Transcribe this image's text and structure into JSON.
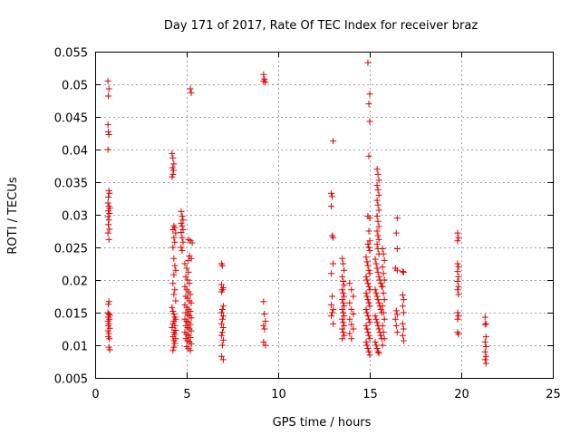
{
  "chart_data": {
    "type": "scatter",
    "title": "Day 171 of 2017, Rate Of TEC Index for receiver braz",
    "xlabel": "GPS time / hours",
    "ylabel": "ROTI / TECUs",
    "xlim": [
      0,
      25
    ],
    "ylim": [
      0.005,
      0.055
    ],
    "xticks": [
      "0",
      "5",
      "10",
      "15",
      "20",
      "25"
    ],
    "yticks": [
      "0.005",
      "0.01",
      "0.015",
      "0.02",
      "0.025",
      "0.03",
      "0.035",
      "0.04",
      "0.045",
      "0.05",
      "0.055"
    ],
    "grid": true,
    "marker": "+",
    "color": "#e00000",
    "points": [
      [
        0.7,
        0.0505
      ],
      [
        0.75,
        0.0493
      ],
      [
        0.72,
        0.0482
      ],
      [
        0.7,
        0.0438
      ],
      [
        0.72,
        0.0427
      ],
      [
        0.75,
        0.0423
      ],
      [
        0.7,
        0.04
      ],
      [
        0.75,
        0.0337
      ],
      [
        0.78,
        0.0333
      ],
      [
        0.72,
        0.0327
      ],
      [
        0.7,
        0.0318
      ],
      [
        0.75,
        0.0313
      ],
      [
        0.8,
        0.031
      ],
      [
        0.72,
        0.0306
      ],
      [
        0.78,
        0.0302
      ],
      [
        0.7,
        0.0297
      ],
      [
        0.75,
        0.0292
      ],
      [
        0.72,
        0.0285
      ],
      [
        0.78,
        0.0278
      ],
      [
        0.7,
        0.0272
      ],
      [
        0.75,
        0.0262
      ],
      [
        0.75,
        0.0167
      ],
      [
        0.72,
        0.0163
      ],
      [
        0.7,
        0.015
      ],
      [
        0.75,
        0.0148
      ],
      [
        0.8,
        0.0146
      ],
      [
        0.72,
        0.0143
      ],
      [
        0.78,
        0.014
      ],
      [
        0.7,
        0.0137
      ],
      [
        0.75,
        0.0133
      ],
      [
        0.72,
        0.013
      ],
      [
        0.8,
        0.0126
      ],
      [
        0.7,
        0.0122
      ],
      [
        0.75,
        0.0118
      ],
      [
        0.72,
        0.0113
      ],
      [
        0.78,
        0.011
      ],
      [
        0.75,
        0.0097
      ],
      [
        0.8,
        0.0093
      ],
      [
        4.2,
        0.0394
      ],
      [
        4.25,
        0.0387
      ],
      [
        4.3,
        0.0378
      ],
      [
        4.22,
        0.0372
      ],
      [
        4.28,
        0.0368
      ],
      [
        4.25,
        0.0362
      ],
      [
        4.2,
        0.0358
      ],
      [
        4.3,
        0.0283
      ],
      [
        4.35,
        0.028
      ],
      [
        4.25,
        0.0277
      ],
      [
        4.4,
        0.0272
      ],
      [
        4.3,
        0.0265
      ],
      [
        4.35,
        0.0258
      ],
      [
        4.25,
        0.025
      ],
      [
        4.3,
        0.0233
      ],
      [
        4.35,
        0.0222
      ],
      [
        4.4,
        0.0215
      ],
      [
        4.3,
        0.0208
      ],
      [
        4.25,
        0.0195
      ],
      [
        4.35,
        0.0185
      ],
      [
        4.3,
        0.0178
      ],
      [
        4.4,
        0.0168
      ],
      [
        4.2,
        0.0158
      ],
      [
        4.25,
        0.0152
      ],
      [
        4.3,
        0.0148
      ],
      [
        4.35,
        0.0143
      ],
      [
        4.4,
        0.014
      ],
      [
        4.3,
        0.0137
      ],
      [
        4.25,
        0.0133
      ],
      [
        4.35,
        0.013
      ],
      [
        4.2,
        0.0127
      ],
      [
        4.4,
        0.0123
      ],
      [
        4.3,
        0.012
      ],
      [
        4.35,
        0.0117
      ],
      [
        4.25,
        0.0113
      ],
      [
        4.4,
        0.011
      ],
      [
        4.3,
        0.0107
      ],
      [
        4.35,
        0.0103
      ],
      [
        4.3,
        0.0097
      ],
      [
        4.25,
        0.0092
      ],
      [
        4.7,
        0.0305
      ],
      [
        4.75,
        0.0298
      ],
      [
        4.8,
        0.0292
      ],
      [
        4.7,
        0.0287
      ],
      [
        4.75,
        0.0283
      ],
      [
        4.8,
        0.0277
      ],
      [
        4.7,
        0.0273
      ],
      [
        4.75,
        0.0265
      ],
      [
        4.8,
        0.0258
      ],
      [
        4.7,
        0.025
      ],
      [
        4.75,
        0.0245
      ],
      [
        5.2,
        0.0493
      ],
      [
        5.25,
        0.0487
      ],
      [
        5.1,
        0.0262
      ],
      [
        5.2,
        0.026
      ],
      [
        5.3,
        0.0257
      ],
      [
        5.15,
        0.0237
      ],
      [
        5.25,
        0.0233
      ],
      [
        5.1,
        0.023
      ],
      [
        4.9,
        0.0225
      ],
      [
        5.0,
        0.0218
      ],
      [
        5.1,
        0.0212
      ],
      [
        4.95,
        0.0205
      ],
      [
        5.05,
        0.02
      ],
      [
        5.15,
        0.0195
      ],
      [
        4.9,
        0.019
      ],
      [
        5.0,
        0.0185
      ],
      [
        5.1,
        0.0182
      ],
      [
        5.2,
        0.0178
      ],
      [
        4.95,
        0.0175
      ],
      [
        5.05,
        0.0172
      ],
      [
        5.15,
        0.0168
      ],
      [
        5.25,
        0.0165
      ],
      [
        4.9,
        0.0162
      ],
      [
        5.0,
        0.0158
      ],
      [
        5.1,
        0.0155
      ],
      [
        5.2,
        0.0152
      ],
      [
        4.95,
        0.015
      ],
      [
        5.05,
        0.0147
      ],
      [
        5.15,
        0.0145
      ],
      [
        5.25,
        0.0142
      ],
      [
        4.9,
        0.014
      ],
      [
        5.0,
        0.0137
      ],
      [
        5.1,
        0.0135
      ],
      [
        5.2,
        0.0132
      ],
      [
        4.95,
        0.013
      ],
      [
        5.05,
        0.0127
      ],
      [
        5.15,
        0.0125
      ],
      [
        5.25,
        0.0122
      ],
      [
        4.9,
        0.012
      ],
      [
        5.0,
        0.0117
      ],
      [
        5.1,
        0.0115
      ],
      [
        5.2,
        0.0112
      ],
      [
        4.95,
        0.011
      ],
      [
        5.05,
        0.0107
      ],
      [
        5.15,
        0.0105
      ],
      [
        5.25,
        0.0102
      ],
      [
        5.0,
        0.0098
      ],
      [
        5.1,
        0.0095
      ],
      [
        5.2,
        0.0092
      ],
      [
        6.9,
        0.0225
      ],
      [
        6.95,
        0.0222
      ],
      [
        6.9,
        0.0193
      ],
      [
        7.0,
        0.0188
      ],
      [
        6.95,
        0.0185
      ],
      [
        6.9,
        0.0182
      ],
      [
        7.0,
        0.016
      ],
      [
        6.95,
        0.0155
      ],
      [
        6.9,
        0.015
      ],
      [
        7.0,
        0.0145
      ],
      [
        6.95,
        0.014
      ],
      [
        6.9,
        0.0133
      ],
      [
        7.0,
        0.0127
      ],
      [
        6.95,
        0.012
      ],
      [
        6.9,
        0.0115
      ],
      [
        7.0,
        0.0108
      ],
      [
        6.95,
        0.01
      ],
      [
        6.9,
        0.0083
      ],
      [
        7.0,
        0.0078
      ],
      [
        9.2,
        0.0515
      ],
      [
        9.25,
        0.0508
      ],
      [
        9.2,
        0.0505
      ],
      [
        9.3,
        0.0503
      ],
      [
        9.2,
        0.0167
      ],
      [
        9.25,
        0.0148
      ],
      [
        9.3,
        0.0137
      ],
      [
        9.2,
        0.013
      ],
      [
        9.25,
        0.0125
      ],
      [
        9.2,
        0.0105
      ],
      [
        9.3,
        0.01
      ],
      [
        13.0,
        0.0413
      ],
      [
        12.9,
        0.0333
      ],
      [
        12.95,
        0.0328
      ],
      [
        12.9,
        0.0313
      ],
      [
        12.95,
        0.0268
      ],
      [
        13.0,
        0.0265
      ],
      [
        13.0,
        0.0225
      ],
      [
        12.9,
        0.021
      ],
      [
        12.95,
        0.0175
      ],
      [
        12.9,
        0.0162
      ],
      [
        13.0,
        0.0155
      ],
      [
        12.95,
        0.015
      ],
      [
        12.9,
        0.0145
      ],
      [
        13.0,
        0.0133
      ],
      [
        13.5,
        0.0233
      ],
      [
        13.55,
        0.0225
      ],
      [
        13.6,
        0.0215
      ],
      [
        13.5,
        0.0205
      ],
      [
        13.55,
        0.0198
      ],
      [
        13.6,
        0.0192
      ],
      [
        13.5,
        0.0185
      ],
      [
        13.55,
        0.018
      ],
      [
        13.6,
        0.0175
      ],
      [
        13.5,
        0.017
      ],
      [
        13.55,
        0.0165
      ],
      [
        13.6,
        0.016
      ],
      [
        13.5,
        0.0155
      ],
      [
        13.55,
        0.015
      ],
      [
        13.6,
        0.0145
      ],
      [
        13.5,
        0.014
      ],
      [
        13.55,
        0.0135
      ],
      [
        13.6,
        0.013
      ],
      [
        13.5,
        0.0125
      ],
      [
        13.55,
        0.012
      ],
      [
        13.6,
        0.0115
      ],
      [
        13.5,
        0.011
      ],
      [
        13.9,
        0.0195
      ],
      [
        14.0,
        0.0185
      ],
      [
        14.1,
        0.0175
      ],
      [
        13.9,
        0.0165
      ],
      [
        14.0,
        0.0155
      ],
      [
        14.1,
        0.0148
      ],
      [
        13.9,
        0.014
      ],
      [
        14.0,
        0.0132
      ],
      [
        14.1,
        0.0125
      ],
      [
        13.9,
        0.0118
      ],
      [
        14.0,
        0.011
      ],
      [
        14.9,
        0.0533
      ],
      [
        15.0,
        0.0485
      ],
      [
        14.95,
        0.047
      ],
      [
        15.0,
        0.0443
      ],
      [
        14.95,
        0.039
      ],
      [
        14.9,
        0.0298
      ],
      [
        15.0,
        0.0295
      ],
      [
        14.95,
        0.0275
      ],
      [
        15.0,
        0.026
      ],
      [
        14.9,
        0.0255
      ],
      [
        14.95,
        0.025
      ],
      [
        15.0,
        0.0245
      ],
      [
        14.8,
        0.0235
      ],
      [
        14.85,
        0.0228
      ],
      [
        14.9,
        0.0222
      ],
      [
        14.95,
        0.0215
      ],
      [
        15.0,
        0.021
      ],
      [
        14.8,
        0.0205
      ],
      [
        14.85,
        0.02
      ],
      [
        14.9,
        0.0195
      ],
      [
        14.95,
        0.019
      ],
      [
        15.0,
        0.0185
      ],
      [
        14.8,
        0.018
      ],
      [
        14.85,
        0.0175
      ],
      [
        14.9,
        0.017
      ],
      [
        14.95,
        0.0165
      ],
      [
        15.0,
        0.016
      ],
      [
        14.8,
        0.0155
      ],
      [
        14.85,
        0.015
      ],
      [
        14.9,
        0.0145
      ],
      [
        14.95,
        0.014
      ],
      [
        15.0,
        0.0135
      ],
      [
        14.8,
        0.013
      ],
      [
        14.85,
        0.0125
      ],
      [
        14.9,
        0.012
      ],
      [
        14.95,
        0.0115
      ],
      [
        15.0,
        0.011
      ],
      [
        14.8,
        0.0105
      ],
      [
        14.85,
        0.01
      ],
      [
        14.9,
        0.0095
      ],
      [
        14.95,
        0.009
      ],
      [
        15.0,
        0.0085
      ],
      [
        15.4,
        0.037
      ],
      [
        15.45,
        0.0362
      ],
      [
        15.5,
        0.0353
      ],
      [
        15.4,
        0.0345
      ],
      [
        15.45,
        0.0338
      ],
      [
        15.5,
        0.033
      ],
      [
        15.4,
        0.0322
      ],
      [
        15.45,
        0.0315
      ],
      [
        15.5,
        0.0307
      ],
      [
        15.4,
        0.0298
      ],
      [
        15.45,
        0.029
      ],
      [
        15.5,
        0.0282
      ],
      [
        15.4,
        0.0275
      ],
      [
        15.45,
        0.0268
      ],
      [
        15.5,
        0.0262
      ],
      [
        15.4,
        0.0255
      ],
      [
        15.45,
        0.0248
      ],
      [
        15.5,
        0.024
      ],
      [
        15.3,
        0.0232
      ],
      [
        15.35,
        0.0225
      ],
      [
        15.4,
        0.0218
      ],
      [
        15.45,
        0.0212
      ],
      [
        15.5,
        0.0205
      ],
      [
        15.55,
        0.02
      ],
      [
        15.6,
        0.0195
      ],
      [
        15.65,
        0.019
      ],
      [
        15.3,
        0.0185
      ],
      [
        15.35,
        0.018
      ],
      [
        15.4,
        0.0175
      ],
      [
        15.45,
        0.017
      ],
      [
        15.5,
        0.0165
      ],
      [
        15.55,
        0.016
      ],
      [
        15.6,
        0.0155
      ],
      [
        15.65,
        0.015
      ],
      [
        15.3,
        0.0145
      ],
      [
        15.35,
        0.014
      ],
      [
        15.4,
        0.0135
      ],
      [
        15.45,
        0.013
      ],
      [
        15.5,
        0.0125
      ],
      [
        15.55,
        0.012
      ],
      [
        15.6,
        0.0115
      ],
      [
        15.65,
        0.011
      ],
      [
        15.3,
        0.0105
      ],
      [
        15.35,
        0.01
      ],
      [
        15.4,
        0.0095
      ],
      [
        15.45,
        0.009
      ],
      [
        15.5,
        0.0088
      ],
      [
        15.7,
        0.0248
      ],
      [
        15.75,
        0.024
      ],
      [
        15.8,
        0.023
      ],
      [
        15.7,
        0.022
      ],
      [
        15.75,
        0.021
      ],
      [
        15.8,
        0.02
      ],
      [
        15.7,
        0.019
      ],
      [
        15.75,
        0.018
      ],
      [
        15.8,
        0.017
      ],
      [
        15.7,
        0.016
      ],
      [
        15.75,
        0.015
      ],
      [
        15.8,
        0.014
      ],
      [
        15.7,
        0.013
      ],
      [
        15.75,
        0.012
      ],
      [
        15.8,
        0.011
      ],
      [
        15.7,
        0.01
      ],
      [
        16.5,
        0.0295
      ],
      [
        16.45,
        0.0272
      ],
      [
        16.5,
        0.0248
      ],
      [
        16.4,
        0.0218
      ],
      [
        16.5,
        0.0215
      ],
      [
        16.45,
        0.0153
      ],
      [
        16.5,
        0.0147
      ],
      [
        16.4,
        0.014
      ],
      [
        16.45,
        0.013
      ],
      [
        16.5,
        0.012
      ],
      [
        16.8,
        0.0213
      ],
      [
        16.85,
        0.0212
      ],
      [
        16.8,
        0.0177
      ],
      [
        16.85,
        0.017
      ],
      [
        16.8,
        0.016
      ],
      [
        16.85,
        0.015
      ],
      [
        16.8,
        0.0133
      ],
      [
        16.85,
        0.0125
      ],
      [
        16.8,
        0.0115
      ],
      [
        16.85,
        0.0107
      ],
      [
        19.8,
        0.0272
      ],
      [
        19.85,
        0.0265
      ],
      [
        19.8,
        0.026
      ],
      [
        19.8,
        0.0225
      ],
      [
        19.85,
        0.022
      ],
      [
        19.8,
        0.0213
      ],
      [
        19.85,
        0.0205
      ],
      [
        19.8,
        0.0198
      ],
      [
        19.85,
        0.019
      ],
      [
        19.8,
        0.0185
      ],
      [
        19.85,
        0.0178
      ],
      [
        19.8,
        0.015
      ],
      [
        19.85,
        0.0145
      ],
      [
        19.8,
        0.014
      ],
      [
        19.8,
        0.012
      ],
      [
        19.85,
        0.0117
      ],
      [
        21.3,
        0.0143
      ],
      [
        21.35,
        0.0133
      ],
      [
        21.3,
        0.0132
      ],
      [
        21.35,
        0.0113
      ],
      [
        21.3,
        0.0105
      ],
      [
        21.35,
        0.0098
      ],
      [
        21.3,
        0.009
      ],
      [
        21.35,
        0.0083
      ],
      [
        21.3,
        0.0078
      ],
      [
        21.35,
        0.0072
      ]
    ]
  }
}
